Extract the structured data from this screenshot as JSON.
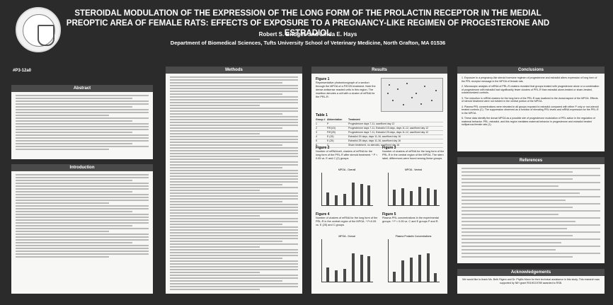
{
  "header": {
    "title": "STEROIDAL MODULATION OF THE EXPRESSION OF THE LONG FORM OF THE PROLACTIN RECEPTOR  IN THE MEDIAL PREOPTIC AREA OF FEMALE RATS: EFFECTS OF EXPOSURE TO A PREGNANCY-LIKE REGIMEN OF PROGESTERONE AND ESTRADIOL",
    "authors": "Robert S. Bridges and Linda E. Hays",
    "affiliation": "Department of Biomedical Sciences, Tufts University School of Veterinary Medicine, North Grafton, MA  01536",
    "poster_number": "#P3-12a0"
  },
  "panels": {
    "abstract": "Abstract",
    "introduction": "Introduction",
    "methods": "Methods",
    "results": "Results",
    "conclusions": "Conclusions",
    "references": "References",
    "acknowledgements": "Acknowledgements"
  },
  "results": {
    "figure1_label": "Figure 1",
    "figure1_caption": "Representative photomicrograph of a section through the MPOA of a P/E/25 treatment. Note the dense antisense reacted cells in this region. The insetbox denotes a cell with a cluster of mRNA for the PRL-R.",
    "table1_label": "Table 1",
    "table1_headers": [
      "Group #",
      "Abbreviation",
      "Treatment"
    ],
    "table1_rows": [
      [
        "1",
        "P",
        "Progesterone days 7-11, sacrificed day 12"
      ],
      [
        "2",
        "P/E(15)",
        "Progesterone days 7-11, Estradiol 15 days, days 11-12, sacrificed day 12"
      ],
      [
        "3",
        "P/E(25)",
        "Progesterone days 7-11, Estradiol 25 days, days 11-12, sacrificed day 12"
      ],
      [
        "4",
        "E (15)",
        "Estradiol 15 days, days 11-16, sacrificed day 16"
      ],
      [
        "5",
        "E (25)",
        "Estradiol 25 days, days 11-16, sacrificed day 16"
      ],
      [
        "6",
        "C",
        "Sham treatment, no steroids, sacrificed day 16"
      ]
    ],
    "figure2_label": "Figure 2",
    "figure2_caption": "Number of mRNA/cell, clusters of mRNA for the long form of the PRL-R after steroid treatment. * P < 0.05 vs. E and C (2) groups",
    "figure3_label": "Figure 3",
    "figure3_caption": "Number of clusters of mRNA for the long form of the PRL-R in the central region of the MPOA. The stern label, differences were found among these groups.",
    "figure4_label": "Figure 4",
    "figure4_caption": "Number of clusters of mRNA for the long form of the PRL-R in the central region of the MPOA. * P<0.05 vs. E (25) and C groups",
    "figure5_label": "Figure 5",
    "figure5_caption": "Plasma PRL concentrations in the experimental groups. * P < 0.05 vs. C and E groups P and R."
  },
  "conclusions": [
    "1.  Exposure to a pregnancy-like steroid hormone regimen of progesterone and estradiol alters expression of long form of the PRL receptor message in the MPOA of female rats.",
    "2.  Microscopic analysis of mRNA of PRL-R clusters revealed that groups treated with progesterone alone or a combination of progesterone with estradiol had significantly fewer clusters of PRL-R than estradiol alone-treated or sham-treated, ovariectomized controls.",
    "3.  The reduction in mRNA clusters for the long form of the PRL-R was localized to the dorsal aspect of the MPOA. Effects of steroid treatment were not evident in the ventral portion of the MPOA.",
    "4.  Plasma PRL concentrations were elevated in all groups exposed to estradiol compared with either P only or non-steroid treated controls (C). The suppression observed as a function of elevating PRL levels and mRNA expression for the PRL-R in the MPOA.",
    "5.  These data identify the dorsal MPOA as a possible site of progesterone modulation of PRL action in the regulation of maternal behavior. PRL, estradiol, and this region mediates maternal behavior in progesterone and estradiol treated nulliparous female rats (1)."
  ],
  "acknowledgements_text": "We would like to thank Ms. Beth Rigero and Dr. Phyllis Mann for their technical assistance in this study. This research was supported by NIH grant R01HD19789 awarded to RSB.",
  "charts": {
    "figure2_title": "MPOA - Overall",
    "figure3_title": "MPOA - Ventral",
    "figure4_title": "MPOA - Dorsal",
    "figure5_title": "Plasma Prolactin Concentrations"
  },
  "colors": {
    "background": "#2b2b2b",
    "panel": "#f7f7f5",
    "panel_header": "#4a4a4a",
    "bar": "#4a4a4a"
  }
}
